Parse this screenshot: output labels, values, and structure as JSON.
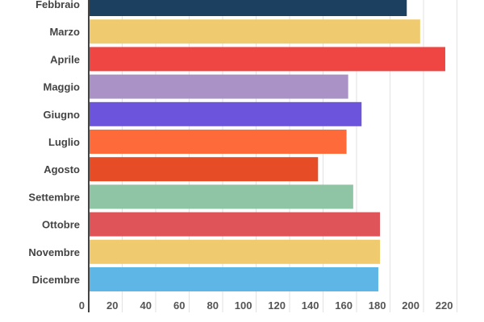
{
  "chart_data": {
    "type": "bar",
    "orientation": "horizontal",
    "categories": [
      "Febbraio",
      "Marzo",
      "Aprile",
      "Maggio",
      "Giugno",
      "Luglio",
      "Agosto",
      "Settembre",
      "Ottobre",
      "Novembre",
      "Dicembre"
    ],
    "values": [
      190,
      198,
      213,
      155,
      163,
      154,
      137,
      158,
      174,
      174,
      173
    ],
    "colors": [
      "#1c4160",
      "#efca6e",
      "#ef4643",
      "#ab92c6",
      "#6c55dc",
      "#fe6a3a",
      "#e64c26",
      "#8fc4a5",
      "#de5458",
      "#efca6e",
      "#5db6e5"
    ],
    "xticks": [
      0,
      20,
      40,
      60,
      80,
      100,
      120,
      140,
      160,
      180,
      200,
      220
    ],
    "xlim": [
      0,
      220
    ],
    "grid": true,
    "title": "",
    "xlabel": "",
    "ylabel": ""
  }
}
